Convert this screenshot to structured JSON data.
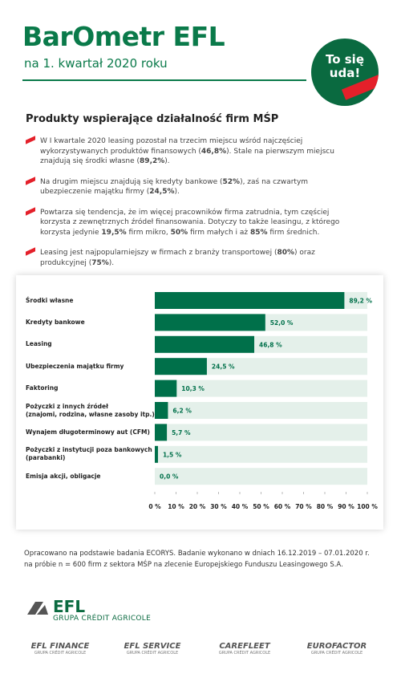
{
  "header": {
    "brand": "BarOmetr EFL",
    "subtitle": "na 1. kwartał 2020 roku",
    "badge": "To się uda!"
  },
  "section_title": "Produkty wspierające działalność firm MŚP",
  "bullets": [
    {
      "parts": [
        {
          "text": "W I kwartale 2020 leasing pozostał na trzecim miejscu wśród najczęściej wykorzystywanych produktów finansowych ("
        },
        {
          "text": "46,8%",
          "bold": true
        },
        {
          "text": "). Stale na pierwszym miejscu znajdują się środki własne ("
        },
        {
          "text": "89,2%",
          "bold": true
        },
        {
          "text": ")."
        }
      ]
    },
    {
      "parts": [
        {
          "text": "Na drugim miejscu znajdują się kredyty bankowe ("
        },
        {
          "text": "52%",
          "bold": true
        },
        {
          "text": "), zaś na czwartym ubezpieczenie majątku firmy ("
        },
        {
          "text": "24,5%",
          "bold": true
        },
        {
          "text": ")."
        }
      ]
    },
    {
      "parts": [
        {
          "text": "Powtarza się tendencja, że im więcej pracowników firma zatrudnia, tym częściej korzysta z zewnętrznych źródeł finansowania. Dotyczy to także leasingu, z którego korzysta jedynie "
        },
        {
          "text": "19,5%",
          "bold": true
        },
        {
          "text": " firm mikro, "
        },
        {
          "text": "50%",
          "bold": true
        },
        {
          "text": " firm małych i aż "
        },
        {
          "text": "85%",
          "bold": true
        },
        {
          "text": " firm średnich."
        }
      ]
    },
    {
      "parts": [
        {
          "text": "Leasing jest najpopularniejszy w firmach z branży transportowej ("
        },
        {
          "text": "80%",
          "bold": true
        },
        {
          "text": ") oraz produkcyjnej ("
        },
        {
          "text": "75%",
          "bold": true
        },
        {
          "text": ")."
        }
      ]
    }
  ],
  "chart_data": {
    "type": "bar",
    "orientation": "horizontal",
    "color": "#00704a",
    "track_color": "#e4f0ea",
    "categories": [
      "Środki własne",
      "Kredyty bankowe",
      "Leasing",
      "Ubezpieczenia majątku firmy",
      "Faktoring",
      "Pożyczki z innych źródeł\n(znajomi, rodzina, własne zasoby itp.)",
      "Wynajem długoterminowy aut (CFM)",
      "Pożyczki z instytucji poza bankowych\n(parabanki)",
      "Emisja akcji, obligacje"
    ],
    "values": [
      89.2,
      52.0,
      46.8,
      24.5,
      10.3,
      6.2,
      5.7,
      1.5,
      0.0
    ],
    "value_labels": [
      "89,2 %",
      "52,0 %",
      "46,8 %",
      "24,5 %",
      "10,3 %",
      "6,2 %",
      "5,7 %",
      "1,5 %",
      "0,0 %"
    ],
    "xlim": [
      0,
      100
    ],
    "xticks": [
      {
        "value": 0,
        "label": "0 %"
      },
      {
        "value": 10,
        "label": "10 %"
      },
      {
        "value": 20,
        "label": "20 %"
      },
      {
        "value": 30,
        "label": "30 %"
      },
      {
        "value": 40,
        "label": "40 %"
      },
      {
        "value": 50,
        "label": "50 %"
      },
      {
        "value": 60,
        "label": "60 %"
      },
      {
        "value": 70,
        "label": "70 %"
      },
      {
        "value": 80,
        "label": "80 %"
      },
      {
        "value": 90,
        "label": "90 %"
      },
      {
        "value": 100,
        "label": "100 %"
      }
    ]
  },
  "note": "Opracowano na podstawie badania ECORYS. Badanie wykonano w dniach 16.12.2019 – 07.01.2020 r. na próbie n = 600 firm z sektora MŚP na zlecenie Europejskiego Funduszu Leasingowego S.A.",
  "footer": {
    "logo": "EFL",
    "logo_sub": "GRUPA CRÉDIT AGRICOLE",
    "brands": [
      {
        "name": "EFL FINANCE",
        "sub": "GRUPA CRÉDIT AGRICOLE"
      },
      {
        "name": "EFL SERVICE",
        "sub": "GRUPA CRÉDIT AGRICOLE"
      },
      {
        "name": "CAREFLEET",
        "sub": "GRUPA CRÉDIT AGRICOLE"
      },
      {
        "name": "EUROFACTOR",
        "sub": "GRUPA CRÉDIT AGRICOLE"
      }
    ]
  }
}
